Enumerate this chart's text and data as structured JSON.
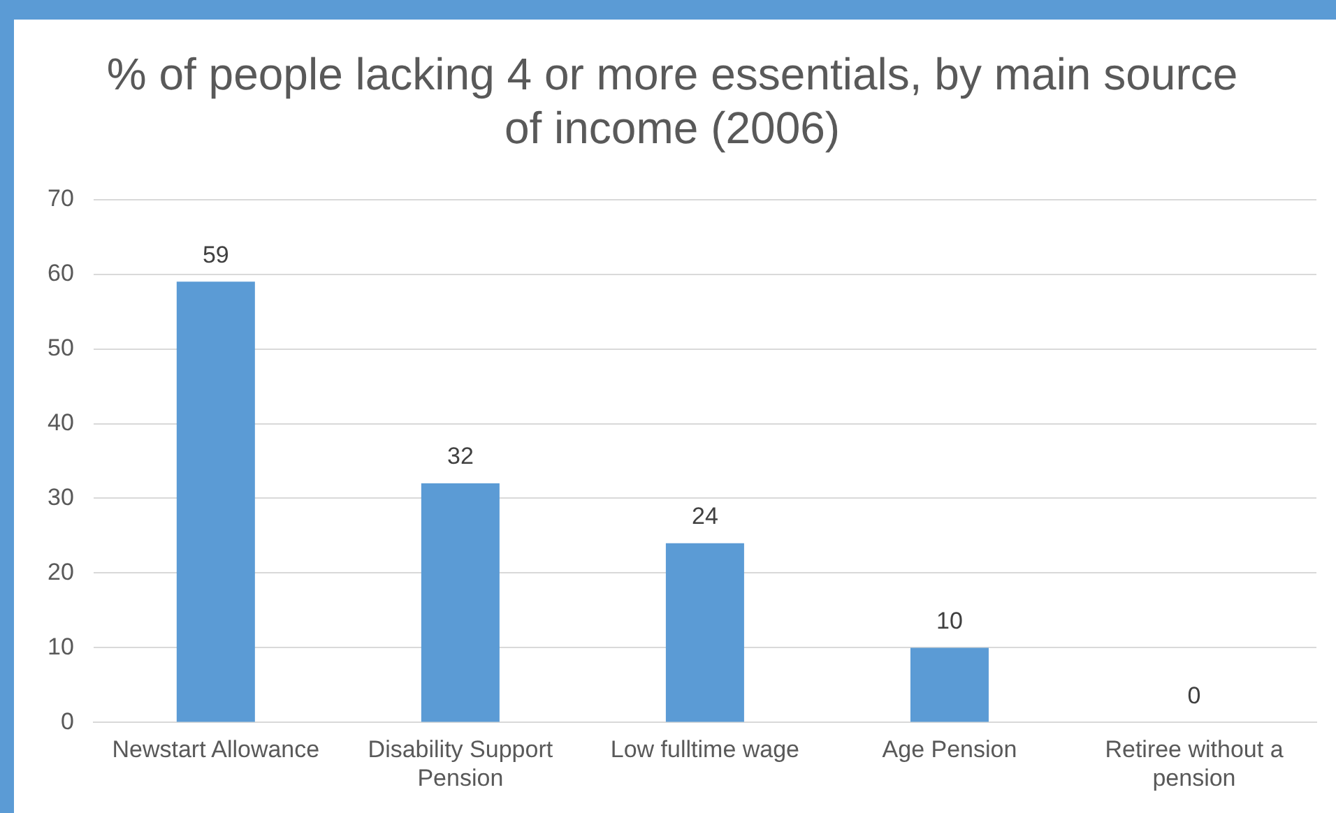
{
  "chart_data": {
    "type": "bar",
    "title": "% of people lacking 4 or more essentials, by main source of income (2006)",
    "categories": [
      "Newstart Allowance",
      "Disability Support Pension",
      "Low fulltime wage",
      "Age Pension",
      "Retiree without a pension"
    ],
    "values": [
      59,
      32,
      24,
      10,
      0
    ],
    "color": "#5b9bd5",
    "ylim": [
      0,
      70
    ],
    "yticks": [
      0,
      10,
      20,
      30,
      40,
      50,
      60,
      70
    ],
    "grid": "y",
    "data_labels": true
  }
}
